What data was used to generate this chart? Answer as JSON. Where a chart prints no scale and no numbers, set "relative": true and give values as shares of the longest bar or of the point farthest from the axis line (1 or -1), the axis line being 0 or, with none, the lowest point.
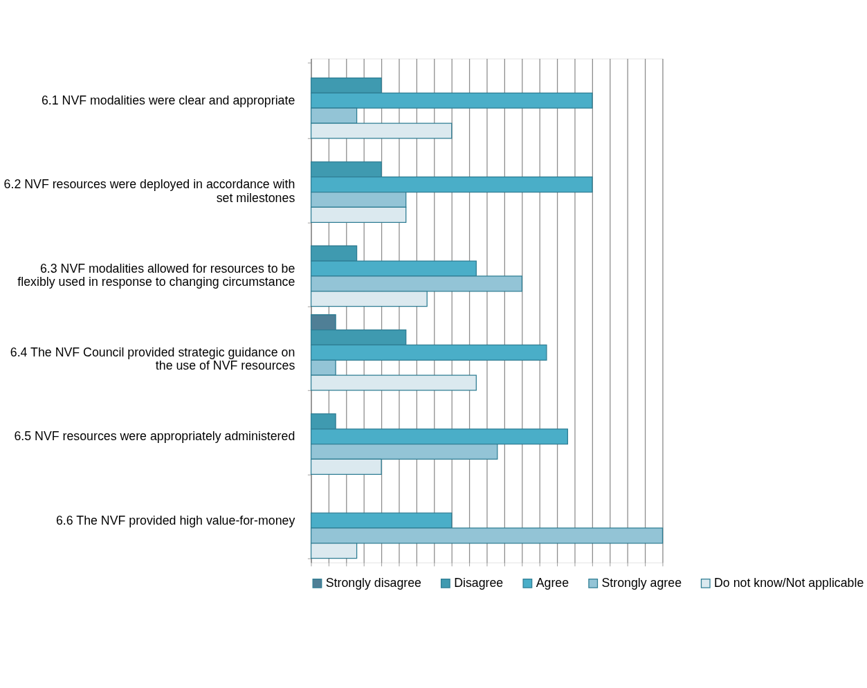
{
  "chart_data": {
    "type": "bar",
    "orientation": "horizontal",
    "relative": true,
    "grid": "x",
    "legend": "bottom",
    "tick_labels": "y",
    "categories": [
      "6.1 NVF modalities were clear and appropriate",
      "6.2 NVF resources were deployed in accordance with set milestones",
      "6.3 NVF modalities allowed for  resources to be flexibly used in response to changing circumstance",
      "6.4 The NVF Council provided strategic guidance on the use of NVF resources",
      "6.5 NVF resources were appropriately administered",
      "6.6 The NVF provided high value-for-money"
    ],
    "series": [
      {
        "name": "Strongly disagree",
        "color": "#4f7f96",
        "values": [
          null,
          null,
          null,
          0.07,
          null,
          null
        ]
      },
      {
        "name": "Disagree",
        "color": "#3f9ab0",
        "values": [
          0.2,
          0.2,
          0.13,
          0.27,
          0.07,
          null
        ]
      },
      {
        "name": "Agree",
        "color": "#4aaec8",
        "values": [
          0.8,
          0.8,
          0.47,
          0.67,
          0.73,
          0.4
        ]
      },
      {
        "name": "Strongly agree",
        "color": "#93c4d6",
        "values": [
          0.13,
          0.27,
          0.6,
          0.07,
          0.53,
          1
        ]
      },
      {
        "name": "Do not know/Not applicable",
        "color": "#dbe9ef",
        "values": [
          0.4,
          0.27,
          0.33,
          0.47,
          0.2,
          0.13
        ]
      }
    ]
  }
}
